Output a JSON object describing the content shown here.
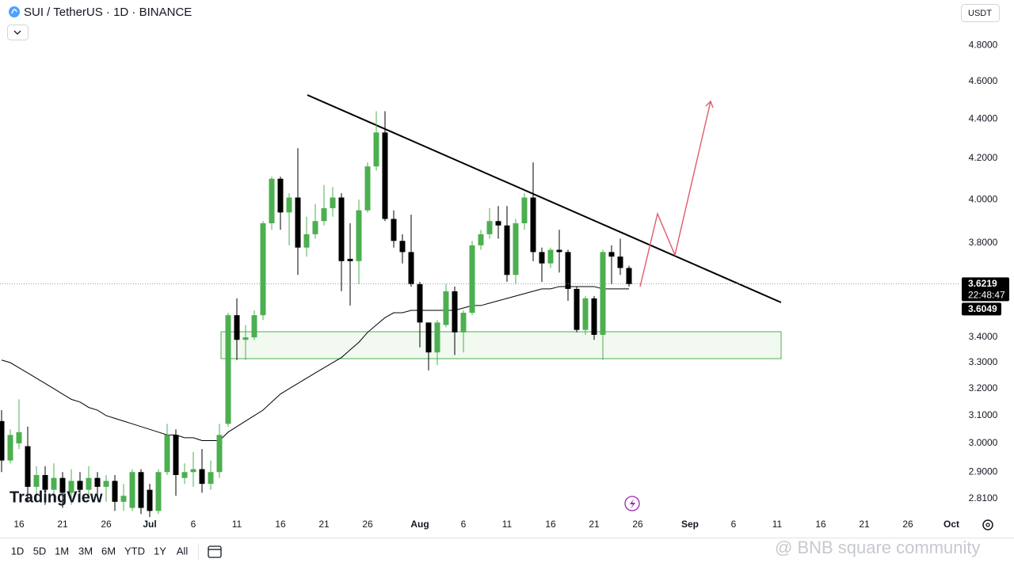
{
  "header": {
    "symbol_title": "SUI / TetherUS · 1D · BINANCE",
    "currency": "USDT"
  },
  "toolbar": {
    "ranges": [
      "1D",
      "5D",
      "1M",
      "3M",
      "6M",
      "YTD",
      "1Y",
      "All"
    ]
  },
  "watermark": "TradingView",
  "overlay_text": "@ BNB square community",
  "chart_data": {
    "type": "candlestick",
    "log_scale": true,
    "grid": false,
    "up_color": "#4caf50",
    "down_color": "#000000",
    "categories": [
      null,
      null,
      "16",
      null,
      null,
      null,
      null,
      "21",
      null,
      null,
      null,
      null,
      "26",
      null,
      null,
      null,
      null,
      "Jul",
      null,
      null,
      null,
      null,
      "6",
      null,
      null,
      null,
      null,
      "11",
      null,
      null,
      null,
      null,
      "16",
      null,
      null,
      null,
      null,
      "21",
      null,
      null,
      null,
      null,
      "26",
      null,
      null,
      null,
      null,
      null,
      "Aug",
      null,
      null,
      null,
      null,
      "6",
      null,
      null,
      null,
      null,
      "11",
      null,
      null,
      null,
      null,
      "16",
      null,
      null,
      null,
      null,
      "21",
      null,
      null,
      null,
      null,
      "26",
      null,
      null,
      null,
      null,
      null,
      "Sep",
      null,
      null,
      null,
      null,
      "6",
      null,
      null,
      null,
      null,
      "11",
      null,
      null,
      null,
      null,
      "16",
      null,
      null,
      null,
      null,
      "21",
      null,
      null,
      null,
      null,
      "26",
      null,
      null,
      null,
      null,
      "Oct"
    ],
    "open": [
      3.08,
      2.94,
      3.0,
      2.99,
      2.85,
      2.89,
      2.84,
      2.88,
      2.83,
      2.87,
      2.84,
      2.88,
      2.85,
      2.87,
      2.8,
      2.78,
      2.9,
      2.84,
      2.77,
      2.9,
      3.03,
      2.88,
      2.9,
      2.91,
      2.86,
      2.9,
      3.07,
      3.49,
      3.39,
      3.4,
      3.49,
      3.89,
      4.1,
      3.94,
      4.01,
      3.78,
      3.84,
      3.9,
      3.96,
      4.01,
      3.73,
      3.72,
      3.95,
      4.16,
      4.33,
      3.91,
      3.81,
      3.76,
      3.62,
      3.46,
      3.34,
      3.45,
      3.59,
      3.42,
      3.5,
      3.79,
      3.84,
      3.9,
      3.88,
      3.66,
      3.89,
      4.01,
      3.76,
      3.71,
      3.77,
      3.76,
      3.6,
      3.43,
      3.56,
      3.41,
      3.76,
      3.74,
      3.69,
      null,
      null,
      null,
      null,
      null,
      null,
      null,
      null,
      null,
      null,
      null,
      null,
      null,
      null,
      null,
      null,
      null,
      null,
      null,
      null,
      null,
      null,
      null,
      null,
      null,
      null,
      null,
      null,
      null,
      null,
      null,
      null,
      null,
      null,
      null,
      null,
      null
    ],
    "high": [
      3.12,
      3.05,
      3.16,
      3.06,
      2.92,
      2.92,
      2.93,
      2.9,
      2.91,
      2.9,
      2.92,
      2.9,
      2.89,
      2.89,
      2.86,
      2.91,
      2.91,
      2.86,
      2.91,
      3.07,
      3.05,
      2.93,
      2.97,
      2.98,
      2.94,
      3.07,
      3.5,
      3.56,
      3.45,
      3.51,
      3.9,
      4.11,
      4.11,
      4.03,
      4.25,
      3.92,
      3.98,
      4.07,
      4.06,
      4.03,
      3.89,
      4.0,
      4.18,
      4.44,
      4.44,
      3.95,
      3.84,
      3.93,
      3.63,
      3.46,
      3.47,
      3.62,
      3.61,
      3.51,
      3.81,
      3.86,
      3.96,
      3.97,
      3.97,
      3.91,
      4.03,
      4.18,
      3.78,
      3.78,
      3.86,
      3.77,
      3.61,
      3.57,
      3.57,
      3.77,
      3.79,
      3.82,
      3.7,
      null,
      null,
      null,
      null,
      null,
      null,
      null,
      null,
      null,
      null,
      null,
      null,
      null,
      null,
      null,
      null,
      null,
      null,
      null,
      null,
      null,
      null,
      null,
      null,
      null,
      null,
      null,
      null,
      null,
      null,
      null,
      null,
      null,
      null,
      null,
      null,
      null
    ],
    "low": [
      2.9,
      2.93,
      2.98,
      2.8,
      2.8,
      2.79,
      2.8,
      2.78,
      2.79,
      2.8,
      2.81,
      2.81,
      2.8,
      2.77,
      2.77,
      2.77,
      2.76,
      2.75,
      2.76,
      2.89,
      2.82,
      2.86,
      2.85,
      2.83,
      2.84,
      2.88,
      3.06,
      3.31,
      3.31,
      3.39,
      3.47,
      3.86,
      3.86,
      3.79,
      3.66,
      3.74,
      3.82,
      3.88,
      3.92,
      3.59,
      3.53,
      3.62,
      3.94,
      4.14,
      3.9,
      3.78,
      3.71,
      3.61,
      3.36,
      3.27,
      3.29,
      3.44,
      3.33,
      3.34,
      3.49,
      3.77,
      3.82,
      3.82,
      3.63,
      3.62,
      3.86,
      3.72,
      3.63,
      3.69,
      3.67,
      3.55,
      3.42,
      3.41,
      3.39,
      3.31,
      3.62,
      3.66,
      3.61,
      null,
      null,
      null,
      null,
      null,
      null,
      null,
      null,
      null,
      null,
      null,
      null,
      null,
      null,
      null,
      null,
      null,
      null,
      null,
      null,
      null,
      null,
      null,
      null,
      null,
      null,
      null,
      null,
      null,
      null,
      null,
      null,
      null,
      null,
      null,
      null,
      null
    ],
    "close": [
      2.94,
      3.03,
      3.04,
      2.85,
      2.89,
      2.84,
      2.88,
      2.83,
      2.87,
      2.84,
      2.88,
      2.85,
      2.87,
      2.8,
      2.82,
      2.9,
      2.78,
      2.77,
      2.9,
      3.03,
      2.89,
      2.9,
      2.91,
      2.86,
      2.9,
      3.03,
      3.49,
      3.39,
      3.4,
      3.49,
      3.89,
      4.1,
      3.94,
      4.01,
      3.78,
      3.84,
      3.9,
      3.96,
      4.01,
      3.72,
      3.72,
      3.95,
      4.16,
      4.33,
      3.91,
      3.81,
      3.76,
      3.62,
      3.46,
      3.34,
      3.46,
      3.59,
      3.42,
      3.5,
      3.79,
      3.84,
      3.9,
      3.88,
      3.66,
      3.89,
      4.01,
      3.76,
      3.71,
      3.77,
      3.76,
      3.6,
      3.43,
      3.56,
      3.41,
      3.76,
      3.74,
      3.69,
      3.62,
      null,
      null,
      null,
      null,
      null,
      null,
      null,
      null,
      null,
      null,
      null,
      null,
      null,
      null,
      null,
      null,
      null,
      null,
      null,
      null,
      null,
      null,
      null,
      null,
      null,
      null,
      null,
      null,
      null,
      null,
      null,
      null,
      null,
      null,
      null,
      null,
      null
    ],
    "ma": {
      "color": "#000000",
      "values": [
        3.31,
        3.3,
        3.28,
        3.26,
        3.24,
        3.22,
        3.2,
        3.18,
        3.16,
        3.15,
        3.13,
        3.12,
        3.1,
        3.09,
        3.08,
        3.07,
        3.06,
        3.05,
        3.04,
        3.03,
        3.03,
        3.02,
        3.02,
        3.01,
        3.01,
        3.01,
        3.04,
        3.06,
        3.08,
        3.1,
        3.12,
        3.15,
        3.18,
        3.2,
        3.22,
        3.24,
        3.26,
        3.28,
        3.3,
        3.32,
        3.35,
        3.38,
        3.42,
        3.45,
        3.48,
        3.5,
        3.5,
        3.51,
        3.51,
        3.51,
        3.51,
        3.51,
        3.51,
        3.52,
        3.53,
        3.53,
        3.54,
        3.55,
        3.56,
        3.57,
        3.58,
        3.59,
        3.6,
        3.6,
        3.61,
        3.61,
        3.61,
        3.61,
        3.61,
        3.6,
        3.6,
        3.6,
        3.6,
        null,
        null,
        null,
        null,
        null,
        null,
        null,
        null,
        null,
        null,
        null,
        null,
        null,
        null,
        null,
        null,
        null,
        null,
        null,
        null,
        null,
        null,
        null,
        null,
        null,
        null,
        null,
        null,
        null,
        null,
        null,
        null,
        null,
        null,
        null,
        null,
        null
      ]
    },
    "ylim": [
      2.758,
      5.063
    ],
    "yticks": [
      {
        "value": 4.8,
        "label": "4.8000"
      },
      {
        "value": 4.6,
        "label": "4.6000"
      },
      {
        "value": 4.4,
        "label": "4.4000"
      },
      {
        "value": 4.2,
        "label": "4.2000"
      },
      {
        "value": 4.0,
        "label": "4.0000"
      },
      {
        "value": 3.8,
        "label": "3.8000"
      },
      {
        "value": 3.4,
        "label": "3.4000"
      },
      {
        "value": 3.3,
        "label": "3.3000"
      },
      {
        "value": 3.2,
        "label": "3.2000"
      },
      {
        "value": 3.1,
        "label": "3.1000"
      },
      {
        "value": 3.0,
        "label": "3.0000"
      },
      {
        "value": 2.9,
        "label": "2.9000"
      },
      {
        "value": 2.81,
        "label": "2.8100"
      }
    ],
    "price_tags": [
      {
        "value": 3.6219,
        "label": "3.6219",
        "countdown": "22:48:47"
      },
      {
        "value": 3.6049,
        "label": "3.6049"
      }
    ]
  }
}
